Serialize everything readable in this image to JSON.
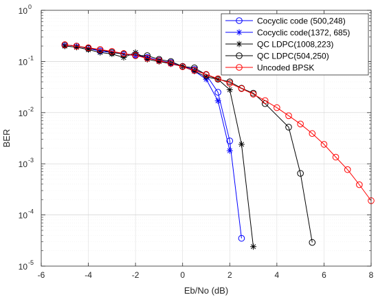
{
  "chart_data": {
    "type": "line",
    "xlabel": "Eb/No (dB)",
    "ylabel": "BER",
    "xlim": [
      -6,
      8
    ],
    "ylim": [
      1e-05,
      1
    ],
    "yscale": "log",
    "grid": true,
    "minor_grid": true,
    "legend_position": "top-right",
    "x_ticks": [
      -6,
      -4,
      -2,
      0,
      2,
      4,
      6,
      8
    ],
    "x_tick_labels": [
      "-6",
      "-4",
      "-2",
      "0",
      "2",
      "4",
      "6",
      "8"
    ],
    "y_ticks": [
      1,
      0.1,
      0.01,
      0.001,
      0.0001,
      1e-05
    ],
    "y_tick_labels": [
      {
        "base": "10",
        "exp": "0"
      },
      {
        "base": "10",
        "exp": "-1"
      },
      {
        "base": "10",
        "exp": "-2"
      },
      {
        "base": "10",
        "exp": "-3"
      },
      {
        "base": "10",
        "exp": "-4"
      },
      {
        "base": "10",
        "exp": "-5"
      }
    ],
    "series": [
      {
        "name": "Cocyclic code (500,248)",
        "color": "#0000ff",
        "marker": "circle",
        "x": [
          -5,
          -4.5,
          -4,
          -3.5,
          -3,
          -2.5,
          -2,
          -1.5,
          -1,
          -0.5,
          0,
          0.5,
          1,
          1.5,
          2,
          2.5
        ],
        "y": [
          0.21,
          0.2,
          0.18,
          0.16,
          0.15,
          0.14,
          0.135,
          0.12,
          0.105,
          0.095,
          0.08,
          0.07,
          0.055,
          0.025,
          0.0028,
          3.5e-05
        ]
      },
      {
        "name": "Cocyclic code(1372, 685)",
        "color": "#0000ff",
        "marker": "asterisk",
        "x": [
          -5,
          -4.5,
          -4,
          -3.5,
          -3,
          -2.5,
          -2,
          -1.5,
          -1,
          -0.5,
          0,
          0.5,
          1,
          1.5,
          2
        ],
        "y": [
          0.21,
          0.2,
          0.18,
          0.16,
          0.15,
          0.14,
          0.13,
          0.12,
          0.105,
          0.09,
          0.08,
          0.065,
          0.045,
          0.017,
          0.0018
        ]
      },
      {
        "name": "QC LDPC(1008,223)",
        "color": "#000000",
        "marker": "asterisk",
        "x": [
          -5,
          -4.5,
          -4,
          -3.5,
          -3,
          -2.5,
          -2,
          -1.5,
          -1,
          -0.5,
          0,
          0.5,
          1,
          1.5,
          2,
          2.5,
          3
        ],
        "y": [
          0.2,
          0.19,
          0.17,
          0.15,
          0.14,
          0.12,
          0.15,
          0.11,
          0.1,
          0.09,
          0.08,
          0.065,
          0.05,
          0.045,
          0.028,
          0.0024,
          2.4e-05
        ]
      },
      {
        "name": "QC LDPC(504,250)",
        "color": "#000000",
        "marker": "circle",
        "x": [
          -5,
          -4.5,
          -4,
          -3.5,
          -3,
          -2.5,
          -2,
          -1.5,
          -1,
          -0.5,
          0,
          0.5,
          1,
          1.5,
          2,
          2.5,
          3,
          3.5,
          4.5,
          5,
          5.5
        ],
        "y": [
          0.21,
          0.2,
          0.18,
          0.17,
          0.15,
          0.14,
          0.13,
          0.13,
          0.11,
          0.1,
          0.08,
          0.075,
          0.055,
          0.045,
          0.04,
          0.03,
          0.024,
          0.015,
          0.0052,
          0.00065,
          2.9e-05
        ]
      },
      {
        "name": "Uncoded BPSK",
        "color": "#ff0000",
        "marker": "circle",
        "x": [
          -5,
          -4.5,
          -4,
          -3.5,
          -3,
          -2.5,
          -2,
          -1.5,
          -1,
          -0.5,
          0,
          0.5,
          1,
          1.5,
          2,
          2.5,
          3,
          3.5,
          4,
          4.5,
          5,
          5.5,
          6,
          6.5,
          7,
          7.5,
          8
        ],
        "y": [
          0.213,
          0.199,
          0.186,
          0.171,
          0.158,
          0.143,
          0.131,
          0.115,
          0.104,
          0.092,
          0.079,
          0.067,
          0.056,
          0.046,
          0.0375,
          0.0295,
          0.0229,
          0.0172,
          0.0125,
          0.0087,
          0.006,
          0.0039,
          0.0024,
          0.00135,
          0.00077,
          0.00039,
          0.00019
        ]
      }
    ]
  }
}
